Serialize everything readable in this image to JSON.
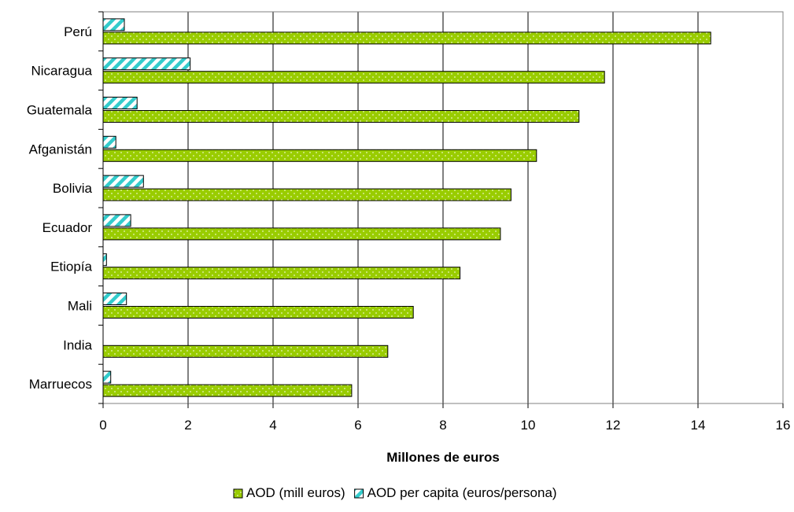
{
  "chart_data": {
    "type": "bar",
    "orientation": "horizontal",
    "categories": [
      "Perú",
      "Nicaragua",
      "Guatemala",
      "Afganistán",
      "Bolivia",
      "Ecuador",
      "Etiopía",
      "Mali",
      "India",
      "Marruecos"
    ],
    "series": [
      {
        "name": "AOD (mill euros)",
        "values": [
          14.3,
          11.8,
          11.2,
          10.2,
          9.6,
          9.35,
          8.4,
          7.3,
          6.7,
          5.85
        ],
        "color": "#99cc00",
        "pattern": "dotted"
      },
      {
        "name": "AOD per capita (euros/persona)",
        "values": [
          0.5,
          2.05,
          0.8,
          0.3,
          0.95,
          0.65,
          0.08,
          0.55,
          0.0,
          0.18
        ],
        "color": "#33cccc",
        "pattern": "diagonal-stripes"
      }
    ],
    "xlabel": "Millones de euros",
    "ylabel": "",
    "xlim": [
      0,
      16
    ],
    "xticks": [
      "0",
      "2",
      "4",
      "6",
      "8",
      "10",
      "12",
      "14",
      "16"
    ],
    "grid": "vertical",
    "legend_position": "bottom"
  }
}
